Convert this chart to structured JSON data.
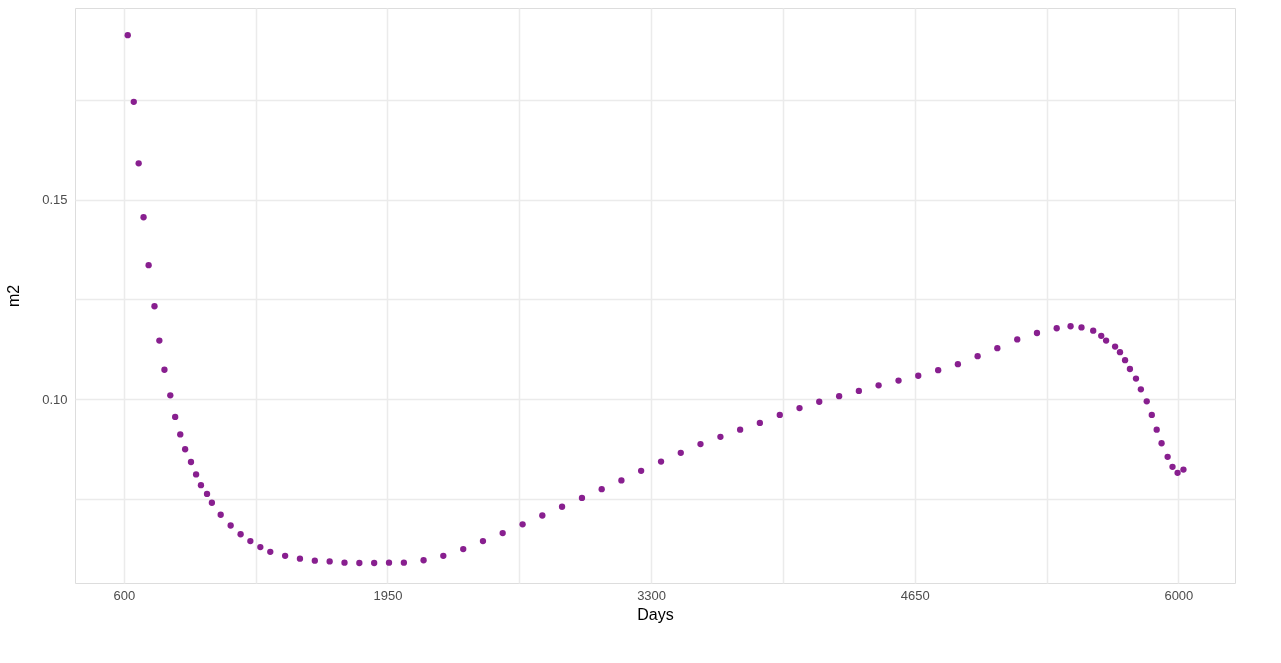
{
  "chart_data": {
    "type": "scatter",
    "xlabel": "Days",
    "ylabel": "m2",
    "marker": "circle",
    "grid": true,
    "xlim": [
      350,
      6290
    ],
    "ylim": [
      0.054,
      0.198
    ],
    "xticks": [
      600,
      {
        "value": 1275,
        "label": null
      },
      1950,
      {
        "value": 2625,
        "label": null
      },
      3300,
      {
        "value": 3975,
        "label": null
      },
      4650,
      {
        "value": 5325,
        "label": null
      },
      6000
    ],
    "yticks": [
      {
        "value": 0.075,
        "label": null
      },
      {
        "value": 0.1,
        "label": "0.10"
      },
      {
        "value": 0.125,
        "label": null
      },
      0.15,
      {
        "value": 0.175,
        "label": null
      }
    ],
    "x": [
      620,
      651,
      676,
      701,
      727,
      757,
      782,
      808,
      838,
      863,
      889,
      914,
      944,
      970,
      995,
      1026,
      1051,
      1096,
      1147,
      1198,
      1248,
      1299,
      1350,
      1426,
      1502,
      1578,
      1654,
      1730,
      1806,
      1882,
      1958,
      2034,
      2135,
      2236,
      2338,
      2439,
      2540,
      2642,
      2743,
      2844,
      2946,
      3047,
      3148,
      3249,
      3351,
      3452,
      3553,
      3655,
      3756,
      3857,
      3959,
      4060,
      4161,
      4263,
      4364,
      4465,
      4567,
      4668,
      4770,
      4871,
      4972,
      5073,
      5175,
      5276,
      5377,
      5448,
      5504,
      5564,
      5605,
      5630,
      5676,
      5701,
      5727,
      5752,
      5783,
      5808,
      5838,
      5864,
      5889,
      5914,
      5945,
      5970,
      5996,
      6026
    ],
    "series": [
      {
        "color": "#881f8f",
        "values": [
          0.1912,
          0.1745,
          0.1591,
          0.1456,
          0.1336,
          0.1233,
          0.1147,
          0.1074,
          0.101,
          0.0956,
          0.0912,
          0.0875,
          0.0843,
          0.0812,
          0.0785,
          0.0763,
          0.0741,
          0.0711,
          0.0684,
          0.0662,
          0.0645,
          0.063,
          0.0618,
          0.0608,
          0.0601,
          0.0596,
          0.0594,
          0.0591,
          0.059,
          0.059,
          0.0591,
          0.0591,
          0.0597,
          0.0608,
          0.0625,
          0.0645,
          0.0665,
          0.0687,
          0.0709,
          0.0731,
          0.0753,
          0.0775,
          0.0797,
          0.0821,
          0.0844,
          0.0866,
          0.0888,
          0.0906,
          0.0924,
          0.0941,
          0.0961,
          0.0978,
          0.0994,
          0.1008,
          0.1021,
          0.1035,
          0.1047,
          0.1059,
          0.1073,
          0.1088,
          0.1108,
          0.1128,
          0.115,
          0.1166,
          0.1178,
          0.1183,
          0.118,
          0.1172,
          0.1159,
          0.1147,
          0.1132,
          0.1118,
          0.1098,
          0.1076,
          0.1052,
          0.1025,
          0.0995,
          0.0961,
          0.0924,
          0.089,
          0.0856,
          0.0831,
          0.0816,
          0.0824
        ]
      }
    ]
  }
}
